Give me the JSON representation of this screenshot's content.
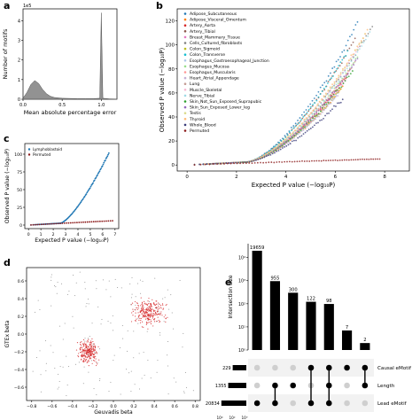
{
  "chart_data": [
    {
      "panel": "a",
      "type": "area",
      "xlabel": "Mean absolute percentage error",
      "ylabel": "Number of motifs",
      "offset_label": "1e5",
      "xticks": [
        "0.0",
        "0.5",
        "1.0"
      ],
      "yticks": [
        "0",
        "1",
        "2",
        "3",
        "4"
      ],
      "xlim": [
        0,
        1.2
      ],
      "ylim": [
        0,
        4.6
      ],
      "x": [
        0.0,
        0.05,
        0.1,
        0.15,
        0.2,
        0.25,
        0.3,
        0.35,
        0.4,
        0.5,
        0.6,
        0.7,
        0.8,
        0.9,
        0.98,
        1.0,
        1.02,
        1.1,
        1.2
      ],
      "y": [
        0.05,
        0.35,
        0.75,
        0.95,
        0.8,
        0.5,
        0.28,
        0.15,
        0.09,
        0.05,
        0.04,
        0.03,
        0.03,
        0.03,
        0.05,
        4.4,
        0.05,
        0.02,
        0.01
      ],
      "color": "#7f7f7f"
    },
    {
      "panel": "b",
      "type": "scatter",
      "xlabel": "Expected P value (−log₁₀P)",
      "ylabel": "Observed P value (−log₁₀P)",
      "xticks": [
        "0",
        "2",
        "4",
        "6",
        "8"
      ],
      "yticks": [
        "0",
        "20",
        "40",
        "60",
        "80",
        "100",
        "120"
      ],
      "xlim": [
        -0.4,
        9
      ],
      "ylim": [
        -5,
        130
      ],
      "legend_position": "top-left",
      "series": [
        {
          "name": "Adipose_Subcutaneous",
          "color": "#1f77b4",
          "end": [
            6.9,
            118
          ]
        },
        {
          "name": "Adipose_Visceral_Omentum",
          "color": "#ff7f0e",
          "end": [
            6.3,
            65
          ]
        },
        {
          "name": "Artery_Aorta",
          "color": "#d62728",
          "end": [
            6.5,
            75
          ]
        },
        {
          "name": "Artery_Tibial",
          "color": "#8c564b",
          "end": [
            6.8,
            105
          ]
        },
        {
          "name": "Breast_Mammary_Tissue",
          "color": "#e377c2",
          "end": [
            6.4,
            70
          ]
        },
        {
          "name": "Cells_Cultured_fibroblasts",
          "color": "#7f7f7f",
          "end": [
            7.5,
            115
          ]
        },
        {
          "name": "Colon_Sigmoid",
          "color": "#bcbd22",
          "end": [
            6.2,
            62
          ]
        },
        {
          "name": "Colon_Transverse",
          "color": "#17becf",
          "end": [
            6.5,
            95
          ]
        },
        {
          "name": "Esophagus_Gastroesophageal_Junction",
          "color": "#aec7e8",
          "end": [
            6.1,
            60
          ]
        },
        {
          "name": "Esophagus_Mucosa",
          "color": "#98df8a",
          "end": [
            6.9,
            90
          ]
        },
        {
          "name": "Esophagus_Muscularis",
          "color": "#ff9896",
          "end": [
            6.6,
            80
          ]
        },
        {
          "name": "Heart_Atrial_Appendage",
          "color": "#c5b0d5",
          "end": [
            6.1,
            58
          ]
        },
        {
          "name": "Lung",
          "color": "#c49c94",
          "end": [
            6.8,
            85
          ]
        },
        {
          "name": "Muscle_Skeletal",
          "color": "#f7b6d2",
          "end": [
            7.0,
            100
          ]
        },
        {
          "name": "Nerve_Tibial",
          "color": "#9edae5",
          "end": [
            7.4,
            110
          ]
        },
        {
          "name": "Skin_Not_Sun_Exposed_Suprapubic",
          "color": "#2ca02c",
          "end": [
            6.7,
            78
          ]
        },
        {
          "name": "Skin_Sun_Exposed_Lower_leg",
          "color": "#9467bd",
          "end": [
            6.9,
            88
          ]
        },
        {
          "name": "Testis",
          "color": "#dbdb8d",
          "end": [
            7.2,
            108
          ]
        },
        {
          "name": "Thyroid",
          "color": "#ffbb78",
          "end": [
            7.3,
            112
          ]
        },
        {
          "name": "Whole_Blood",
          "color": "#393b79",
          "end": [
            6.3,
            55
          ]
        },
        {
          "name": "Permuted",
          "color": "#8b1a1a",
          "end": [
            7.8,
            5
          ]
        }
      ]
    },
    {
      "panel": "c",
      "type": "scatter",
      "xlabel": "Expected P value (−log₁₀P)",
      "ylabel": "Observed P value (−log₁₀P)",
      "xticks": [
        "0",
        "1",
        "2",
        "3",
        "4",
        "5",
        "6",
        "7"
      ],
      "yticks": [
        "0",
        "25",
        "50",
        "75",
        "100"
      ],
      "xlim": [
        -0.3,
        7.3
      ],
      "ylim": [
        -5,
        115
      ],
      "legend_position": "top-left",
      "series": [
        {
          "name": "Lymphoblastoid",
          "color": "#1f77b4"
        },
        {
          "name": "Permuted",
          "color": "#8b1a1a"
        }
      ]
    },
    {
      "panel": "d",
      "type": "scatter",
      "xlabel": "Geuvadis beta",
      "ylabel": "GTEx beta",
      "xticks": [
        "−0.8",
        "−0.6",
        "−0.4",
        "−0.2",
        "0.0",
        "0.2",
        "0.4",
        "0.6",
        "0.8"
      ],
      "yticks": [
        "−0.6",
        "−0.4",
        "−0.2",
        "0.0",
        "0.2",
        "0.4",
        "0.6"
      ],
      "xlim": [
        -0.85,
        0.85
      ],
      "ylim": [
        -0.75,
        0.75
      ],
      "colors": [
        "#d62728",
        "#555555"
      ]
    },
    {
      "panel": "e",
      "type": "bar",
      "ylabel": "Intersection size",
      "yscale": "log",
      "yticks": [
        "10⁰",
        "10¹",
        "10²",
        "10³",
        "10⁴"
      ],
      "ylim_log": [
        0,
        4.6
      ],
      "values": [
        19659,
        955,
        300,
        122,
        98,
        7,
        2
      ],
      "value_labels": [
        "19659",
        "955",
        "300",
        "122",
        "98",
        "7",
        "2"
      ],
      "sets": [
        {
          "name": "Causal eMotif",
          "size": "229",
          "size_value": 229
        },
        {
          "name": "Length",
          "size": "1355",
          "size_value": 1355
        },
        {
          "name": "Lead eMotif",
          "size": "20834",
          "size_value": 20834
        }
      ],
      "set_size_ticks": [
        "10⁴",
        "10²",
        "10⁰"
      ],
      "matrix": [
        [
          0,
          0,
          1
        ],
        [
          0,
          1,
          1
        ],
        [
          0,
          1,
          0
        ],
        [
          1,
          0,
          1
        ],
        [
          1,
          1,
          1
        ],
        [
          1,
          0,
          0
        ],
        [
          1,
          1,
          0
        ]
      ]
    }
  ],
  "panels": {
    "a": "a",
    "b": "b",
    "c": "c",
    "d": "d",
    "e": "e"
  }
}
